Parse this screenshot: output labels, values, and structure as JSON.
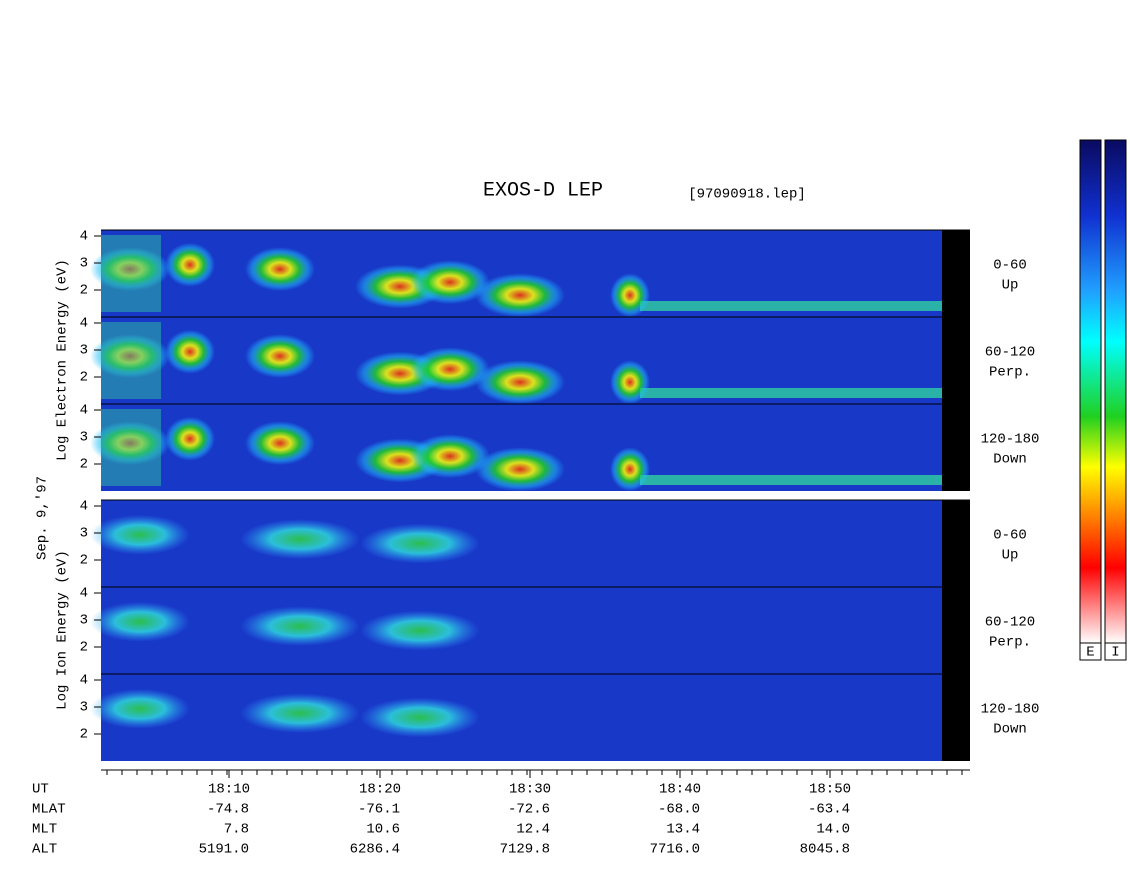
{
  "header": {
    "title": "EXOS-D LEP",
    "file": "[97090918.lep]"
  },
  "left_labels": {
    "electron": "Log Electron Energy (eV)",
    "date": "Sep. 9,'97",
    "ion": "Log Ion Energy (eV)"
  },
  "panels": [
    {
      "ticks": [
        "4",
        "3",
        "2"
      ],
      "angle": "0-60",
      "direction": "Up"
    },
    {
      "ticks": [
        "4",
        "3",
        "2"
      ],
      "angle": "60-120",
      "direction": "Perp."
    },
    {
      "ticks": [
        "4",
        "3",
        "2"
      ],
      "angle": "120-180",
      "direction": "Down"
    },
    {
      "ticks": [
        "4",
        "3",
        "2"
      ],
      "angle": "0-60",
      "direction": "Up"
    },
    {
      "ticks": [
        "4",
        "3",
        "2"
      ],
      "angle": "60-120",
      "direction": "Perp."
    },
    {
      "ticks": [
        "4",
        "3",
        "2"
      ],
      "angle": "120-180",
      "direction": "Down"
    }
  ],
  "axis_rows": [
    {
      "label": "UT",
      "values": [
        "18:10",
        "18:20",
        "18:30",
        "18:40",
        "18:50"
      ]
    },
    {
      "label": "MLAT",
      "values": [
        "-74.8",
        "-76.1",
        "-72.6",
        "-68.0",
        "-63.4"
      ]
    },
    {
      "label": "MLT",
      "values": [
        "7.8",
        "10.6",
        "12.4",
        "13.4",
        "14.0"
      ]
    },
    {
      "label": "ALT",
      "values": [
        "5191.0",
        "6286.4",
        "7129.8",
        "7716.0",
        "8045.8"
      ]
    }
  ],
  "colorbars": [
    "E",
    "I"
  ]
}
